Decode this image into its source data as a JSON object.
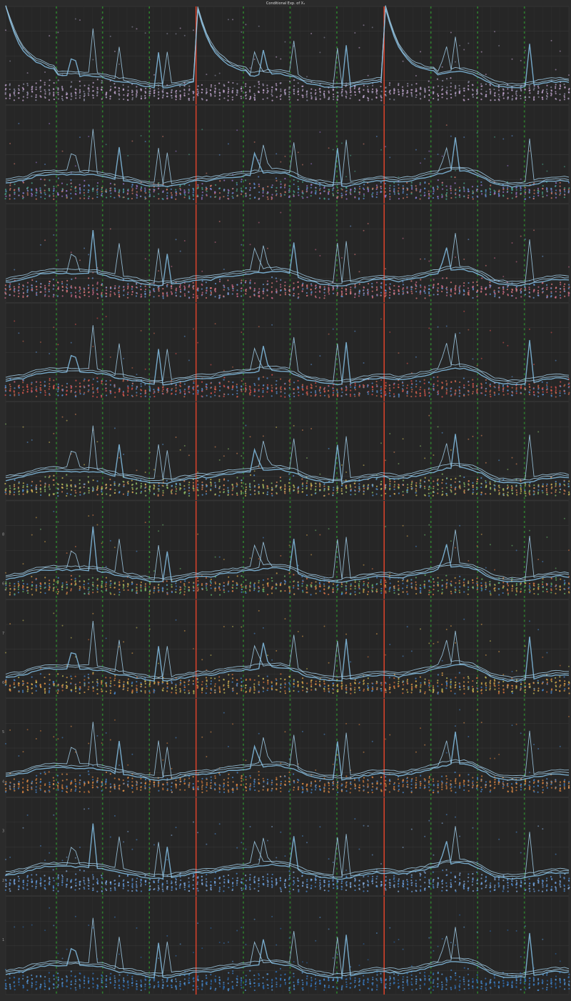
{
  "chart_data": {
    "type": "scatter",
    "title": "Conditional Exp. of X₁",
    "panel_count": 10,
    "panels": [
      {
        "index": 0,
        "tick_labels": []
      },
      {
        "index": 1,
        "tick_labels": []
      },
      {
        "index": 2,
        "tick_labels": []
      },
      {
        "index": 3,
        "tick_labels": []
      },
      {
        "index": 4,
        "tick_labels": []
      },
      {
        "index": 5,
        "tick_labels": [
          "8",
          "6"
        ]
      },
      {
        "index": 6,
        "tick_labels": [
          "7",
          "6"
        ]
      },
      {
        "index": 7,
        "tick_labels": [
          "5",
          "4"
        ]
      },
      {
        "index": 8,
        "tick_labels": [
          "3",
          "2"
        ]
      },
      {
        "index": 9,
        "tick_labels": [
          "1"
        ]
      }
    ],
    "x_points_per_panel": 130,
    "vertical_markers": {
      "green_dashed_x_fraction": [
        0.09,
        0.172,
        0.255,
        0.422,
        0.505,
        0.588,
        0.755,
        0.838,
        0.921
      ],
      "red_solid_x_fraction": [
        0.338,
        0.672
      ]
    },
    "spike_x_fraction": [
      0.12,
      0.155,
      0.2,
      0.27,
      0.285,
      0.445,
      0.46,
      0.51,
      0.59,
      0.605,
      0.78,
      0.8,
      0.93
    ],
    "grid": true,
    "legend": "none"
  },
  "colors": {
    "background": "#2b2b2b",
    "axes_background": "#262626",
    "grid_minor": "#303030",
    "grid_major": "#3a3a3a",
    "green_marker": "#2e7d2e",
    "red_marker": "#d2412a",
    "line": "#7fb8dc",
    "line_thin": "#9cc6e0",
    "title": "#dddddd",
    "tick": "#9a9a9a",
    "panel_scatter": [
      [
        "#b49fc4",
        "#8f8fa8",
        "#c9a9d6"
      ],
      [
        "#9b77d0",
        "#5c8fd6",
        "#d07a6a",
        "#4aa88b"
      ],
      [
        "#e07b7b",
        "#6a9ad8",
        "#c96a8a"
      ],
      [
        "#e0524e",
        "#c9684f",
        "#5a8fd0"
      ],
      [
        "#8dc06a",
        "#e08a5a",
        "#5a9ad8",
        "#d2c05a"
      ],
      [
        "#6ab96a",
        "#e07a4a",
        "#4a8ad0",
        "#d0a04a"
      ],
      [
        "#e0a04a",
        "#d0703a",
        "#4a8ad0",
        "#c9c05a"
      ],
      [
        "#e0904a",
        "#d07a3a",
        "#4a8ad0"
      ],
      [
        "#4a8ad0",
        "#6a9ad8",
        "#8ab0e0"
      ],
      [
        "#3a7ac0",
        "#5a9ad8",
        "#2a6ab0"
      ]
    ]
  }
}
